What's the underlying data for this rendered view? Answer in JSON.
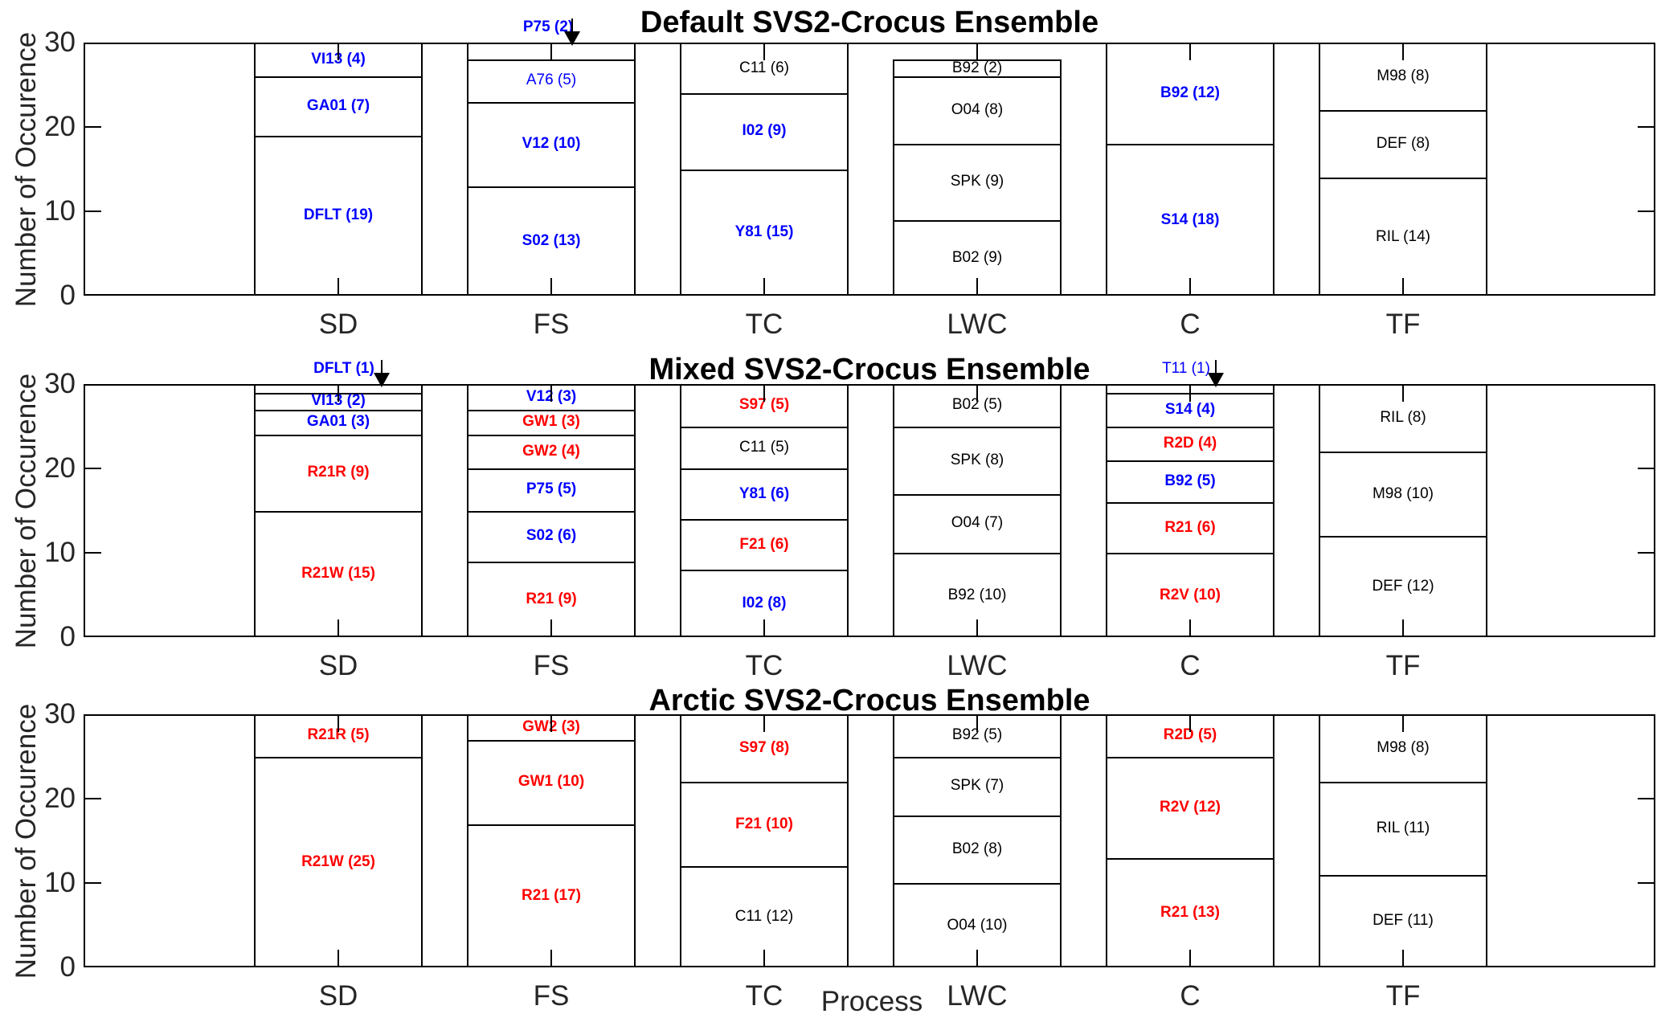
{
  "figure": {
    "ylabel": "Number of Occurence",
    "xlabel": "Process",
    "yticks": [
      "0",
      "10",
      "20",
      "30"
    ],
    "categories": [
      "SD",
      "FS",
      "TC",
      "LWC",
      "C",
      "TF"
    ],
    "palette": {
      "blue": "#0000FF",
      "red": "#FF0000",
      "black": "#000000",
      "axis_text": "#262626",
      "line": "#000000",
      "background": "#FFFFFF"
    }
  },
  "chart_data": [
    {
      "type": "bar",
      "stacked": true,
      "title": "Default SVS2-Crocus Ensemble",
      "ylabel": "Number of Occurence",
      "ylim": [
        0,
        30
      ],
      "categories": [
        "SD",
        "FS",
        "TC",
        "LWC",
        "C",
        "TF"
      ],
      "bars": [
        {
          "category": "SD",
          "total": 30,
          "segments": [
            {
              "text": "VI13 (4)",
              "value": 4,
              "color": "blue",
              "bold": true
            },
            {
              "text": "GA01 (7)",
              "value": 7,
              "color": "blue",
              "bold": true
            },
            {
              "text": "DFLT (19)",
              "value": 19,
              "color": "blue",
              "bold": true
            }
          ]
        },
        {
          "category": "FS",
          "total": 30,
          "segments": [
            {
              "text": "P75 (2)",
              "value": 2,
              "color": "blue",
              "bold": true,
              "label_outside": true
            },
            {
              "text": "A76 (5)",
              "value": 5,
              "color": "blue",
              "bold": false
            },
            {
              "text": "V12 (10)",
              "value": 10,
              "color": "blue",
              "bold": true
            },
            {
              "text": "S02 (13)",
              "value": 13,
              "color": "blue",
              "bold": true
            }
          ]
        },
        {
          "category": "TC",
          "total": 30,
          "segments": [
            {
              "text": "C11 (6)",
              "value": 6,
              "color": "black",
              "bold": false
            },
            {
              "text": "I02 (9)",
              "value": 9,
              "color": "blue",
              "bold": true
            },
            {
              "text": "Y81 (15)",
              "value": 15,
              "color": "blue",
              "bold": true
            }
          ]
        },
        {
          "category": "LWC",
          "total": 28,
          "segments": [
            {
              "text": "B92 (2)",
              "value": 2,
              "color": "black",
              "bold": false
            },
            {
              "text": "O04 (8)",
              "value": 8,
              "color": "black",
              "bold": false
            },
            {
              "text": "SPK (9)",
              "value": 9,
              "color": "black",
              "bold": false
            },
            {
              "text": "B02 (9)",
              "value": 9,
              "color": "black",
              "bold": false
            }
          ]
        },
        {
          "category": "C",
          "total": 30,
          "segments": [
            {
              "text": "B92 (12)",
              "value": 12,
              "color": "blue",
              "bold": true
            },
            {
              "text": "S14 (18)",
              "value": 18,
              "color": "blue",
              "bold": true
            }
          ]
        },
        {
          "category": "TF",
          "total": 30,
          "segments": [
            {
              "text": "M98 (8)",
              "value": 8,
              "color": "black",
              "bold": false
            },
            {
              "text": "DEF (8)",
              "value": 8,
              "color": "black",
              "bold": false
            },
            {
              "text": "RIL (14)",
              "value": 14,
              "color": "black",
              "bold": false
            }
          ]
        }
      ]
    },
    {
      "type": "bar",
      "stacked": true,
      "title": "Mixed SVS2-Crocus Ensemble",
      "ylabel": "Number of Occurence",
      "ylim": [
        0,
        30
      ],
      "categories": [
        "SD",
        "FS",
        "TC",
        "LWC",
        "C",
        "TF"
      ],
      "bars": [
        {
          "category": "SD",
          "total": 30,
          "segments": [
            {
              "text": "DFLT (1)",
              "value": 1,
              "color": "blue",
              "bold": true,
              "label_outside": true
            },
            {
              "text": "VI13 (2)",
              "value": 2,
              "color": "blue",
              "bold": true
            },
            {
              "text": "GA01 (3)",
              "value": 3,
              "color": "blue",
              "bold": true
            },
            {
              "text": "R21R (9)",
              "value": 9,
              "color": "red",
              "bold": true
            },
            {
              "text": "R21W (15)",
              "value": 15,
              "color": "red",
              "bold": true
            }
          ]
        },
        {
          "category": "FS",
          "total": 30,
          "segments": [
            {
              "text": "V12 (3)",
              "value": 3,
              "color": "blue",
              "bold": true
            },
            {
              "text": "GW1 (3)",
              "value": 3,
              "color": "red",
              "bold": true
            },
            {
              "text": "GW2 (4)",
              "value": 4,
              "color": "red",
              "bold": true
            },
            {
              "text": "P75 (5)",
              "value": 5,
              "color": "blue",
              "bold": true
            },
            {
              "text": "S02 (6)",
              "value": 6,
              "color": "blue",
              "bold": true
            },
            {
              "text": "R21 (9)",
              "value": 9,
              "color": "red",
              "bold": true
            }
          ]
        },
        {
          "category": "TC",
          "total": 30,
          "segments": [
            {
              "text": "S97 (5)",
              "value": 5,
              "color": "red",
              "bold": true
            },
            {
              "text": "C11 (5)",
              "value": 5,
              "color": "black",
              "bold": false
            },
            {
              "text": "Y81 (6)",
              "value": 6,
              "color": "blue",
              "bold": true
            },
            {
              "text": "F21 (6)",
              "value": 6,
              "color": "red",
              "bold": true
            },
            {
              "text": "I02 (8)",
              "value": 8,
              "color": "blue",
              "bold": true
            }
          ]
        },
        {
          "category": "LWC",
          "total": 30,
          "segments": [
            {
              "text": "B02 (5)",
              "value": 5,
              "color": "black",
              "bold": false
            },
            {
              "text": "SPK (8)",
              "value": 8,
              "color": "black",
              "bold": false
            },
            {
              "text": "O04 (7)",
              "value": 7,
              "color": "black",
              "bold": false
            },
            {
              "text": "B92 (10)",
              "value": 10,
              "color": "black",
              "bold": false
            }
          ]
        },
        {
          "category": "C",
          "total": 30,
          "segments": [
            {
              "text": "T11 (1)",
              "value": 1,
              "color": "blue",
              "bold": false,
              "label_outside": true
            },
            {
              "text": "S14 (4)",
              "value": 4,
              "color": "blue",
              "bold": true
            },
            {
              "text": "R2D (4)",
              "value": 4,
              "color": "red",
              "bold": true
            },
            {
              "text": "B92 (5)",
              "value": 5,
              "color": "blue",
              "bold": true
            },
            {
              "text": "R21 (6)",
              "value": 6,
              "color": "red",
              "bold": true
            },
            {
              "text": "R2V (10)",
              "value": 10,
              "color": "red",
              "bold": true
            }
          ]
        },
        {
          "category": "TF",
          "total": 30,
          "segments": [
            {
              "text": "RIL (8)",
              "value": 8,
              "color": "black",
              "bold": false
            },
            {
              "text": "M98 (10)",
              "value": 10,
              "color": "black",
              "bold": false
            },
            {
              "text": "DEF (12)",
              "value": 12,
              "color": "black",
              "bold": false
            }
          ]
        }
      ]
    },
    {
      "type": "bar",
      "stacked": true,
      "title": "Arctic SVS2-Crocus Ensemble",
      "ylabel": "Number of Occurence",
      "ylim": [
        0,
        30
      ],
      "categories": [
        "SD",
        "FS",
        "TC",
        "LWC",
        "C",
        "TF"
      ],
      "bars": [
        {
          "category": "SD",
          "total": 30,
          "segments": [
            {
              "text": "R21R (5)",
              "value": 5,
              "color": "red",
              "bold": true
            },
            {
              "text": "R21W (25)",
              "value": 25,
              "color": "red",
              "bold": true
            }
          ]
        },
        {
          "category": "FS",
          "total": 30,
          "segments": [
            {
              "text": "GW2 (3)",
              "value": 3,
              "color": "red",
              "bold": true
            },
            {
              "text": "GW1 (10)",
              "value": 10,
              "color": "red",
              "bold": true
            },
            {
              "text": "R21 (17)",
              "value": 17,
              "color": "red",
              "bold": true
            }
          ]
        },
        {
          "category": "TC",
          "total": 30,
          "segments": [
            {
              "text": "S97 (8)",
              "value": 8,
              "color": "red",
              "bold": true
            },
            {
              "text": "F21 (10)",
              "value": 10,
              "color": "red",
              "bold": true
            },
            {
              "text": "C11 (12)",
              "value": 12,
              "color": "black",
              "bold": false
            }
          ]
        },
        {
          "category": "LWC",
          "total": 30,
          "segments": [
            {
              "text": "B92 (5)",
              "value": 5,
              "color": "black",
              "bold": false
            },
            {
              "text": "SPK (7)",
              "value": 7,
              "color": "black",
              "bold": false
            },
            {
              "text": "B02 (8)",
              "value": 8,
              "color": "black",
              "bold": false
            },
            {
              "text": "O04 (10)",
              "value": 10,
              "color": "black",
              "bold": false
            }
          ]
        },
        {
          "category": "C",
          "total": 30,
          "segments": [
            {
              "text": "R2D (5)",
              "value": 5,
              "color": "red",
              "bold": true
            },
            {
              "text": "R2V (12)",
              "value": 12,
              "color": "red",
              "bold": true
            },
            {
              "text": "R21 (13)",
              "value": 13,
              "color": "red",
              "bold": true
            }
          ]
        },
        {
          "category": "TF",
          "total": 30,
          "segments": [
            {
              "text": "M98 (8)",
              "value": 8,
              "color": "black",
              "bold": false
            },
            {
              "text": "RIL (11)",
              "value": 11,
              "color": "black",
              "bold": false
            },
            {
              "text": "DEF (11)",
              "value": 11,
              "color": "black",
              "bold": false
            }
          ]
        }
      ]
    }
  ]
}
